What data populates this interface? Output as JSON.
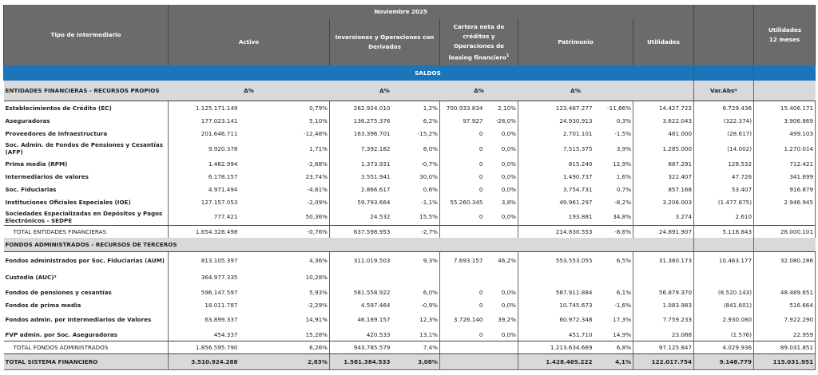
{
  "header": {
    "tipo": "Tipo de Intermediario",
    "period": "Noviembre  2025",
    "activo": "Activo",
    "inversiones": "Inversiones y Operaciones con Derivados",
    "cartera": "Cartera neta de créditos y Operaciones de leasing financiero",
    "cartera_note": "1",
    "patrimonio": "Patrimonio",
    "utilidades": "Utilidades",
    "utilidades12": "Utilidades 12 meses"
  },
  "saldos": "SALDOS",
  "section1": {
    "title": "ENTIDADES FINANCIERAS - RECURSOS PROPIOS",
    "delta": "Δ%",
    "var_abs": "Var.Abs*"
  },
  "section2": {
    "title": "FONDOS ADMINISTRADOS - RECURSOS DE TERCEROS"
  },
  "rows1": [
    [
      "Establecimientos de Crédito (EC)",
      "1.125.171.149",
      "0,79%",
      "262.924.010",
      "1,2%",
      "700.933.834",
      "2,10%",
      "123.467.277",
      "-11,66%",
      "14.427.722",
      "6.729.436",
      "15.406.171"
    ],
    [
      "Aseguradoras",
      "177.023.141",
      "5,10%",
      "136.275.376",
      "6,2%",
      "97.927",
      "-28,0%",
      "24.930.913",
      "0,3%",
      "3.622.043",
      "(322.374)",
      "3.906.869"
    ],
    [
      "Proveedores de Infraestructura",
      "201.646.711",
      "-12,48%",
      "163.396.701",
      "-15,2%",
      "0",
      "0,0%",
      "2.701.101",
      "-1,5%",
      "481.000",
      "(28.617)",
      "499.103"
    ],
    [
      "Soc. Admin. de Fondos de Pensiones y Cesantías (AFP)",
      "9.920.378",
      "1,71%",
      "7.392.182",
      "8,0%",
      "0",
      "0,0%",
      "7.515.375",
      "3,9%",
      "1.285.000",
      "(14.002)",
      "1.270.014"
    ],
    [
      "Prima media (RPM)",
      "1.482.994",
      "-2,68%",
      "1.373.931",
      "-0,7%",
      "0",
      "0,0%",
      "815.240",
      "12,9%",
      "687.291",
      "128.532",
      "712.421"
    ],
    [
      "Intermediarios de valores",
      "6.178.157",
      "23,74%",
      "3.551.941",
      "30,0%",
      "0",
      "0,0%",
      "1.490.737",
      "1,6%",
      "322.407",
      "47.726",
      "341.699"
    ],
    [
      "Soc. Fiduciarias",
      "4.971.494",
      "-4,61%",
      "2.866.617",
      "0,6%",
      "0",
      "0,0%",
      "3.754.731",
      "0,7%",
      "857.168",
      "53.407",
      "916.879"
    ],
    [
      "Instituciones Oficiales Especiales (IOE)",
      "127.157.053",
      "-2,09%",
      "59.793.664",
      "-1,1%",
      "55.260.345",
      "3,8%",
      "49.961.297",
      "-8,2%",
      "3.206.003",
      "(1.477.875)",
      "2.946.945"
    ],
    [
      "Sociedades Especializadas en Depósitos y Pagos Electrónicos - SEDPE",
      "777.421",
      "50,36%",
      "24.532",
      "15,5%",
      "0",
      "0,0%",
      "193.881",
      "34,8%",
      "3.274",
      "2.610",
      ""
    ]
  ],
  "total1": [
    "TOTAL ENTIDADES FINANCIERAS",
    "1.654.328.498",
    "-0,76%",
    "637.598.953",
    "-2,7%",
    "",
    "",
    "214.830.553",
    "-8,6%",
    "24.891.907",
    "5.118.843",
    "26.000.101"
  ],
  "rows2": [
    [
      "Fondos administrados por Soc. Fiduciarias (AUM)",
      "813.105.397",
      "4,36%",
      "311.019.503",
      "9,3%",
      "7.693.157",
      "46,2%",
      "553.553.055",
      "6,5%",
      "31.380.173",
      "10.463.177",
      "32.080.286"
    ],
    [
      "Custodia (AUC)²",
      "364.977.335",
      "10,28%",
      "",
      "",
      "",
      "",
      "",
      "",
      "",
      "",
      ""
    ],
    [
      "Fondos de pensiones y cesantías",
      "596.147.597",
      "5,93%",
      "581.558.922",
      "6,0%",
      "0",
      "0,0%",
      "587.911.884",
      "6,1%",
      "56.879.370",
      "(8.520.143)",
      "48.489.651"
    ],
    [
      "Fondos de prima media",
      "18.011.787",
      "-2,29%",
      "4.597.464",
      "-0,9%",
      "0",
      "0,0%",
      "10.745.673",
      "-1,6%",
      "1.083.983",
      "(841.601)",
      "516.664"
    ],
    [
      "Fondos admin. por Intermediarios de Valores",
      "63.899.337",
      "14,91%",
      "46.189.157",
      "12,3%",
      "3.726.140",
      "39,2%",
      "60.972.348",
      "17,3%",
      "7.759.233",
      "2.930.080",
      "7.922.290"
    ],
    [
      "FVP admin. por Soc. Aseguradoras",
      "454.337",
      "15,28%",
      "420.533",
      "13,1%",
      "0",
      "0,0%",
      "451.710",
      "14,9%",
      "23.088",
      "(1.576)",
      "22.959"
    ]
  ],
  "total2": [
    "TOTAL FONDOS ADMINISTRADOS",
    "1.856.595.790",
    "6,26%",
    "943.785.579",
    "7,4%",
    "",
    "",
    "1.213.634.669",
    "6,8%",
    "97.125.847",
    "4.029.936",
    "89.031.851"
  ],
  "grand": [
    "TOTAL SISTEMA FINANCIERO",
    "3.510.924.288",
    "2,83%",
    "1.581.384.533",
    "3,08%",
    "",
    "",
    "1.428.465.222",
    "4,1%",
    "122.017.754",
    "9.148.779",
    "115.031.951"
  ]
}
